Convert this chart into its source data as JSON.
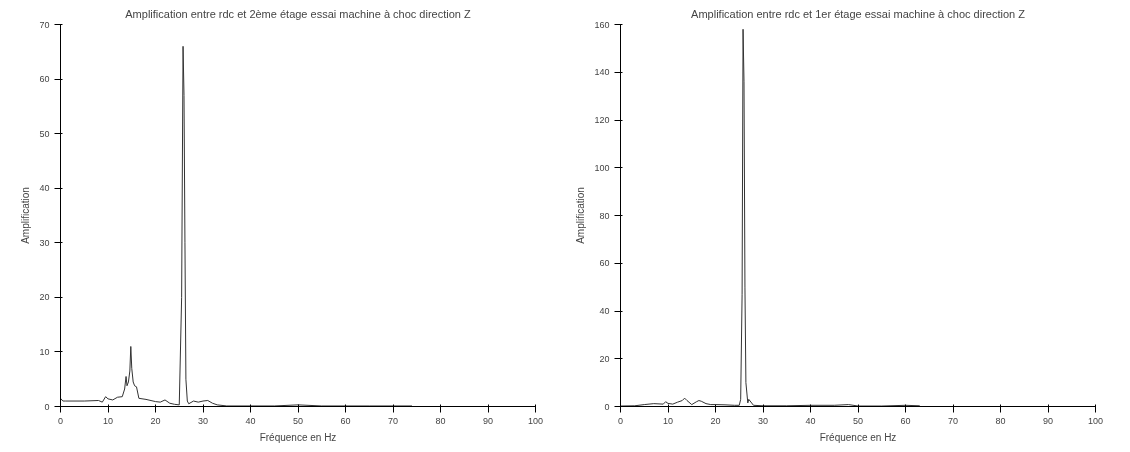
{
  "chart_data": [
    {
      "type": "line",
      "title": "Amplification entre rdc et 2ème étage essai machine à choc direction Z",
      "xlabel": "Fréquence en Hz",
      "ylabel": "Amplification",
      "series": [
        {
          "color": "#333333",
          "x": [
            0,
            0.5,
            1,
            5,
            8,
            8.8,
            9.5,
            10,
            11,
            12,
            13,
            13.5,
            13.8,
            14,
            14.3,
            14.6,
            14.8,
            15,
            15.3,
            15.6,
            16,
            16.5,
            18,
            20,
            21,
            22,
            23,
            24,
            25,
            25.5,
            25.8,
            26,
            26.2,
            26.4,
            26.7,
            27,
            28,
            29,
            30,
            31,
            32,
            33,
            34,
            35,
            40,
            45,
            50,
            55,
            60,
            65,
            70,
            74
          ],
          "values": [
            1.5,
            1.0,
            1.0,
            1.0,
            1.1,
            0.8,
            1.8,
            1.4,
            1.2,
            1.7,
            1.8,
            3.2,
            5.5,
            3.8,
            4.5,
            6.5,
            11,
            7,
            4.5,
            3.8,
            3.6,
            1.5,
            1.3,
            0.9,
            0.8,
            1.2,
            0.6,
            0.4,
            0.3,
            20,
            66,
            57,
            30,
            5,
            1,
            0.5,
            1,
            0.8,
            1,
            1.1,
            0.6,
            0.3,
            0.2,
            0.1,
            0.1,
            0.1,
            0.3,
            0.1,
            0.1,
            0.1,
            0.1,
            0.1
          ]
        }
      ],
      "xlim": [
        0,
        100
      ],
      "xticks": [
        0,
        10,
        20,
        30,
        40,
        50,
        60,
        70,
        80,
        90,
        100
      ],
      "ylim": [
        0,
        70
      ],
      "yticks": [
        0,
        10,
        20,
        30,
        40,
        50,
        60,
        70
      ],
      "grid": false
    },
    {
      "type": "line",
      "title": "Amplification entre rdc et 1er étage essai machine à choc direction Z",
      "xlabel": "Fréquence en Hz",
      "ylabel": "Amplification",
      "series": [
        {
          "color": "#333333",
          "x": [
            0,
            3,
            5,
            7,
            9,
            9.5,
            10,
            11,
            12,
            13,
            13.5,
            14,
            15,
            16,
            16.5,
            17,
            18,
            19,
            20,
            22,
            24,
            25,
            25.3,
            25.6,
            25.8,
            26,
            26.2,
            26.4,
            26.8,
            27,
            28,
            30,
            35,
            40,
            45,
            48,
            50,
            55,
            60,
            63
          ],
          "values": [
            0.2,
            0.3,
            0.8,
            1.2,
            1.0,
            2.0,
            1.3,
            1.0,
            1.8,
            2.5,
            3.5,
            2.5,
            0.8,
            2.0,
            2.5,
            2.2,
            1.2,
            0.8,
            0.8,
            0.7,
            0.5,
            0.5,
            3,
            47,
            158,
            136,
            50,
            10,
            1.5,
            3,
            0.5,
            0.3,
            0.3,
            0.5,
            0.5,
            0.8,
            0.2,
            0.2,
            0.5,
            0.3
          ]
        }
      ],
      "xlim": [
        0,
        100
      ],
      "xticks": [
        0,
        10,
        20,
        30,
        40,
        50,
        60,
        70,
        80,
        90,
        100
      ],
      "ylim": [
        0,
        160
      ],
      "yticks": [
        0,
        20,
        40,
        60,
        80,
        100,
        120,
        140,
        160
      ],
      "grid": false
    }
  ]
}
